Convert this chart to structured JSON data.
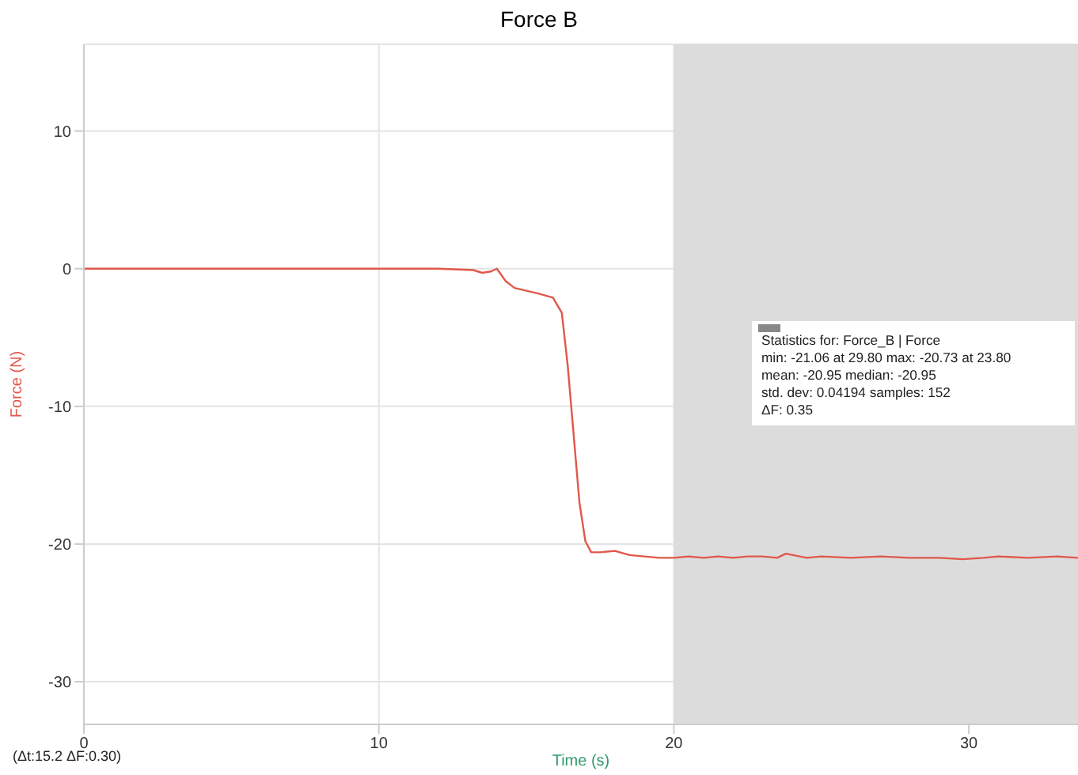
{
  "chart_data": {
    "type": "line",
    "title": "Force B",
    "xlabel": "Time (s)",
    "ylabel": "Force (N)",
    "annotations": [
      "(Δt:15.2 ΔF:0.30)",
      "Statistics for: Force_B | Force\nmin: -21.06 at 29.80 max: -20.73 at 23.80\nmean: -20.95 median: -20.95\nstd. dev: 0.04194 samples: 152\nΔF: 0.35"
    ],
    "series": [
      {
        "color": "#e0584a",
        "x": [
          0,
          2,
          4,
          6,
          8,
          10,
          12,
          13.2,
          13.5,
          13.8,
          14.0,
          14.3,
          14.6,
          15.0,
          15.4,
          15.9,
          16.2,
          16.4,
          16.6,
          16.8,
          17.0,
          17.2,
          17.5,
          18.0,
          18.5,
          19.0,
          19.5,
          20,
          20.5,
          21,
          21.5,
          22,
          22.5,
          23,
          23.5,
          23.8,
          24.5,
          25,
          26,
          27,
          28,
          29,
          29.8,
          30.5,
          31,
          32,
          33,
          33.7
        ],
        "values": [
          0,
          0,
          0,
          0,
          0,
          0,
          0,
          -0.1,
          -0.3,
          -0.2,
          0,
          -0.9,
          -1.4,
          -1.6,
          -1.8,
          -2.1,
          -3.2,
          -7,
          -12,
          -17,
          -19.8,
          -20.6,
          -20.6,
          -20.5,
          -20.8,
          -20.9,
          -21,
          -21,
          -20.9,
          -21,
          -20.9,
          -21,
          -20.9,
          -20.9,
          -21,
          -20.7,
          -21,
          -20.9,
          -21,
          -20.9,
          -21,
          -21,
          -21.1,
          -21,
          -20.9,
          -21,
          -20.9,
          -21
        ]
      }
    ],
    "xlim": [
      0,
      33.7
    ],
    "xticks": [
      0,
      10,
      20,
      30
    ],
    "ylim": [
      -33.1,
      16.3
    ],
    "yticks": [
      -30,
      -20,
      -10,
      0,
      10
    ],
    "grid": true,
    "bands": [
      {
        "axis": "x",
        "from": 20,
        "to": 33.7,
        "color": "#dcdcdc"
      }
    ],
    "marker": "none",
    "line_style": "solid",
    "legend": false
  }
}
